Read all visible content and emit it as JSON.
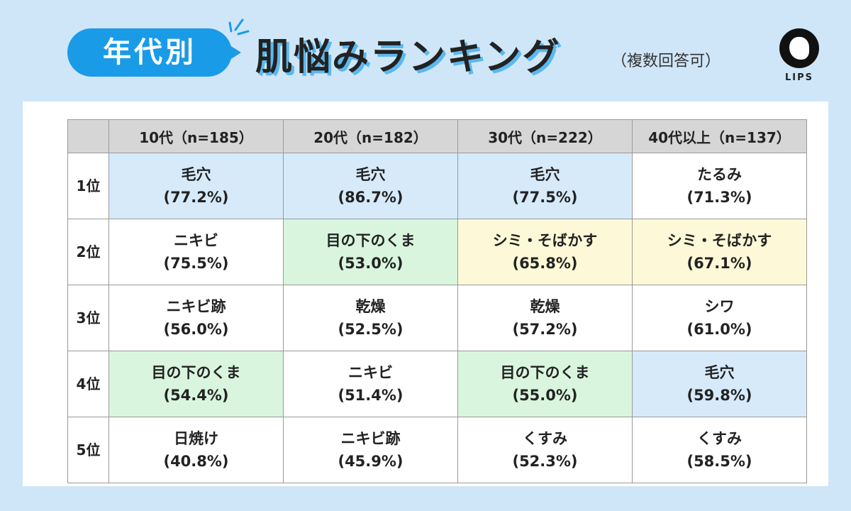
{
  "header": {
    "tag": "年代別",
    "title": "肌悩みランキング",
    "note": "（複数回答可）",
    "logo": "LIPS"
  },
  "table": {
    "columns": [
      "10代（n=185）",
      "20代（n=182）",
      "30代（n=222）",
      "40代以上（n=137）"
    ],
    "rows": [
      {
        "rank": "1位",
        "cells": [
          {
            "item": "毛穴",
            "percent": "(77.2%)",
            "color": "#d6eafa"
          },
          {
            "item": "毛穴",
            "percent": "(86.7%)",
            "color": "#d6eafa"
          },
          {
            "item": "毛穴",
            "percent": "(77.5%)",
            "color": "#d6eafa"
          },
          {
            "item": "たるみ",
            "percent": "(71.3%)",
            "color": "#ffffff"
          }
        ]
      },
      {
        "rank": "2位",
        "cells": [
          {
            "item": "ニキビ",
            "percent": "(75.5%)",
            "color": "#ffffff"
          },
          {
            "item": "目の下のくま",
            "percent": "(53.0%)",
            "color": "#d9f5de"
          },
          {
            "item": "シミ・そばかす",
            "percent": "(65.8%)",
            "color": "#fdf9d8"
          },
          {
            "item": "シミ・そばかす",
            "percent": "(67.1%)",
            "color": "#fdf9d8"
          }
        ]
      },
      {
        "rank": "3位",
        "cells": [
          {
            "item": "ニキビ跡",
            "percent": "(56.0%)",
            "color": "#ffffff"
          },
          {
            "item": "乾燥",
            "percent": "(52.5%)",
            "color": "#ffffff"
          },
          {
            "item": "乾燥",
            "percent": "(57.2%)",
            "color": "#ffffff"
          },
          {
            "item": "シワ",
            "percent": "(61.0%)",
            "color": "#ffffff"
          }
        ]
      },
      {
        "rank": "4位",
        "cells": [
          {
            "item": "目の下のくま",
            "percent": "(54.4%)",
            "color": "#d9f5de"
          },
          {
            "item": "ニキビ",
            "percent": "(51.4%)",
            "color": "#ffffff"
          },
          {
            "item": "目の下のくま",
            "percent": "(55.0%)",
            "color": "#d9f5de"
          },
          {
            "item": "毛穴",
            "percent": "(59.8%)",
            "color": "#d6eafa"
          }
        ]
      },
      {
        "rank": "5位",
        "cells": [
          {
            "item": "日焼け",
            "percent": "(40.8%)",
            "color": "#ffffff"
          },
          {
            "item": "ニキビ跡",
            "percent": "(45.9%)",
            "color": "#ffffff"
          },
          {
            "item": "くすみ",
            "percent": "(52.3%)",
            "color": "#ffffff"
          },
          {
            "item": "くすみ",
            "percent": "(58.5%)",
            "color": "#ffffff"
          }
        ]
      }
    ]
  }
}
